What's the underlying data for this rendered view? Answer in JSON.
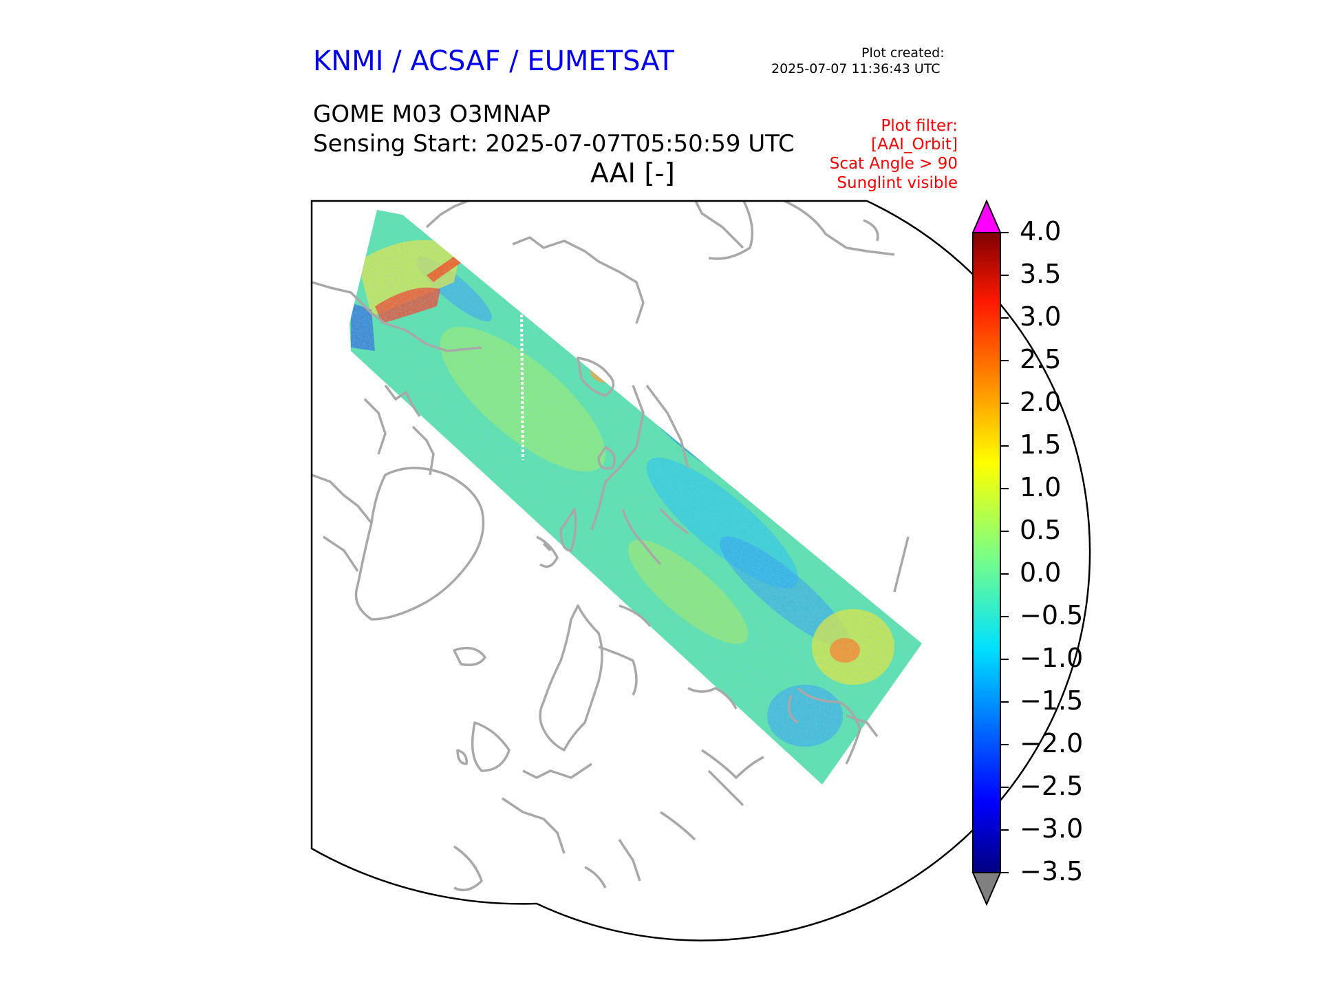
{
  "header": {
    "organization": "KNMI / ACSAF / EUMETSAT",
    "plot_created_label": "Plot created:",
    "plot_created_value": "2025-07-07 11:36:43 UTC",
    "product": "GOME M03 O3MNAP",
    "sensing_start": "Sensing Start: 2025-07-07T05:50:59 UTC",
    "variable_title": "AAI [-]"
  },
  "filters": [
    "Plot filter:",
    "[AAI_Orbit]",
    "Scat Angle > 90",
    "Sunglint visible"
  ],
  "colorbar": {
    "ticks": [
      "4.0",
      "3.5",
      "3.0",
      "2.5",
      "2.0",
      "1.5",
      "1.0",
      "0.5",
      "0.0",
      "−0.5",
      "−1.0",
      "−1.5",
      "−2.0",
      "−2.5",
      "−3.0",
      "−3.5"
    ],
    "min": -3.5,
    "max": 4.0,
    "over_color": "#ff00ff",
    "under_color": "#808080",
    "colormap": [
      "#000080",
      "#0000ff",
      "#0080ff",
      "#00d8ff",
      "#40ffbf",
      "#80ff80",
      "#bfff40",
      "#ffff00",
      "#ff9900",
      "#ff3300",
      "#b30000",
      "#800000"
    ]
  },
  "map": {
    "coastline_color": "#a8a8a8",
    "swath_background": "#5fe3a8"
  }
}
